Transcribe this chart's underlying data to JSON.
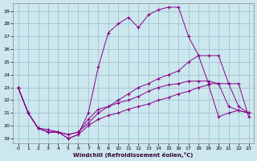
{
  "xlabel": "Windchill (Refroidissement éolien,°C)",
  "bg_color": "#cce8ee",
  "grid_color": "#99bbcc",
  "line_color": "#880088",
  "xmin": -0.5,
  "xmax": 23.5,
  "ymin": 18.6,
  "ymax": 29.6,
  "yticks": [
    19,
    20,
    21,
    22,
    23,
    24,
    25,
    26,
    27,
    28,
    29
  ],
  "xticks": [
    0,
    1,
    2,
    3,
    4,
    5,
    6,
    7,
    8,
    9,
    10,
    11,
    12,
    13,
    14,
    15,
    16,
    17,
    18,
    19,
    20,
    21,
    22,
    23
  ],
  "s1_x": [
    0,
    1,
    2,
    3,
    4,
    5,
    6,
    7,
    8,
    9,
    10,
    11,
    12,
    13,
    14,
    15,
    16,
    17,
    18,
    19,
    20,
    21,
    22,
    23
  ],
  "s1_y": [
    23.0,
    21.0,
    19.8,
    19.7,
    19.5,
    19.0,
    19.3,
    21.0,
    24.6,
    27.3,
    28.0,
    28.5,
    27.7,
    28.7,
    29.1,
    29.3,
    29.3,
    27.0,
    25.5,
    25.5,
    25.5,
    23.3,
    23.3,
    20.7
  ],
  "s2_x": [
    0,
    1,
    2,
    3,
    4,
    5,
    6,
    7,
    8,
    9,
    10,
    11,
    12,
    13,
    14,
    15,
    16,
    17,
    18,
    19,
    20,
    21,
    22,
    23
  ],
  "s2_y": [
    23.0,
    21.0,
    19.8,
    19.5,
    19.5,
    19.3,
    19.5,
    20.5,
    21.3,
    21.5,
    22.0,
    22.5,
    23.0,
    23.3,
    23.7,
    24.0,
    24.3,
    25.0,
    25.5,
    23.3,
    23.3,
    23.3,
    21.5,
    21.0
  ],
  "s3_x": [
    0,
    1,
    2,
    3,
    4,
    5,
    6,
    7,
    8,
    9,
    10,
    11,
    12,
    13,
    14,
    15,
    16,
    17,
    18,
    19,
    20,
    21,
    22,
    23
  ],
  "s3_y": [
    23.0,
    21.0,
    19.8,
    19.5,
    19.5,
    19.3,
    19.5,
    20.2,
    21.0,
    21.5,
    21.8,
    22.0,
    22.3,
    22.7,
    23.0,
    23.2,
    23.3,
    23.5,
    23.5,
    23.5,
    23.3,
    21.5,
    21.2,
    21.0
  ],
  "s4_x": [
    0,
    1,
    2,
    3,
    4,
    5,
    6,
    7,
    8,
    9,
    10,
    11,
    12,
    13,
    14,
    15,
    16,
    17,
    18,
    19,
    20,
    21,
    22,
    23
  ],
  "s4_y": [
    23.0,
    21.0,
    19.8,
    19.5,
    19.5,
    19.0,
    19.3,
    20.0,
    20.5,
    20.8,
    21.0,
    21.3,
    21.5,
    21.7,
    22.0,
    22.2,
    22.5,
    22.7,
    23.0,
    23.2,
    20.7,
    21.0,
    21.2,
    21.0
  ]
}
